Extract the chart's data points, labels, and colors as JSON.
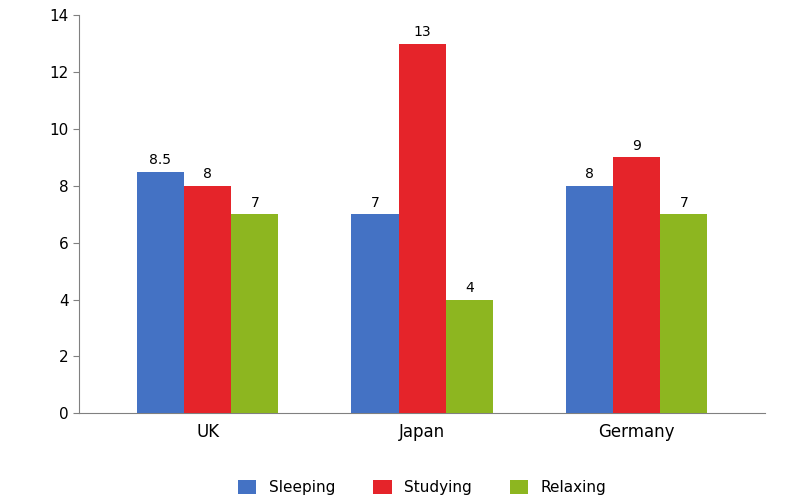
{
  "categories": [
    "UK",
    "Japan",
    "Germany"
  ],
  "series": {
    "Sleeping": [
      8.5,
      7,
      8
    ],
    "Studying": [
      8,
      13,
      9
    ],
    "Relaxing": [
      7,
      4,
      7
    ]
  },
  "colors": {
    "Sleeping": "#4472C4",
    "Studying": "#E5242A",
    "Relaxing": "#8DB620"
  },
  "bar_labels": {
    "Sleeping": [
      "8.5",
      "7",
      "8"
    ],
    "Studying": [
      "8",
      "13",
      "9"
    ],
    "Relaxing": [
      "7",
      "4",
      "7"
    ]
  },
  "ylim": [
    0,
    14
  ],
  "yticks": [
    0,
    2,
    4,
    6,
    8,
    10,
    12,
    14
  ],
  "bar_width": 0.22,
  "background_color": "#ffffff",
  "legend_labels": [
    "Sleeping",
    "Studying",
    "Relaxing"
  ],
  "label_fontsize": 10,
  "tick_fontsize": 11,
  "category_fontsize": 12
}
